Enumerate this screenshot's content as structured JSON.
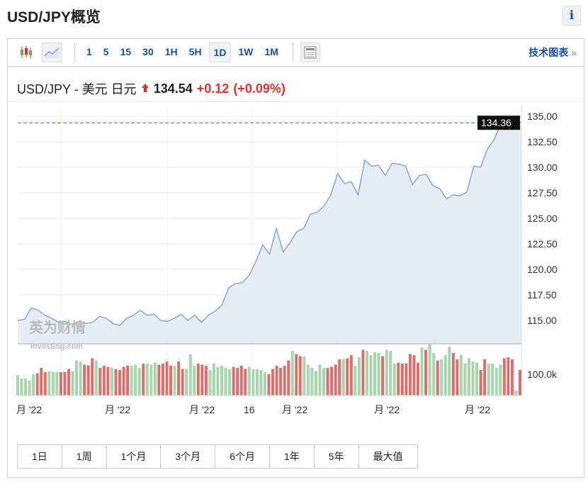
{
  "page": {
    "title": "USD/JPY概览",
    "info_label": "i"
  },
  "toolbar": {
    "intervals": [
      "1",
      "5",
      "15",
      "30",
      "1H",
      "5H",
      "1D",
      "1W",
      "1M"
    ],
    "selected_interval": "1D",
    "tech_label": "技术图表",
    "tech_arrow": "»",
    "icons": [
      "candlestick-icon",
      "area-chart-icon",
      "news-layout-icon"
    ]
  },
  "quote": {
    "name": "USD/JPY - 美元 日元",
    "price": "134.54",
    "change": "+0.12",
    "change_pct": "(+0.09%)",
    "direction": "up"
  },
  "colors": {
    "up": "#e0302b",
    "line": "#7ea3cc",
    "fill": "#e6ecf4",
    "vol_up": "#a8d5ad",
    "vol_down": "#d9706e",
    "link": "#1c4f9c"
  },
  "watermark": {
    "cn": "英为财情",
    "en": "Investing.com"
  },
  "chart_data": {
    "type": "area",
    "ylim": [
      112.5,
      135
    ],
    "y_ticks": [
      "115.00",
      "117.50",
      "120.00",
      "122.50",
      "125.00",
      "127.50",
      "130.00",
      "132.50",
      "135.00"
    ],
    "last_value_label": "134.36",
    "x_tick_labels": [
      "月 '22",
      "月 '22",
      "月 '22",
      "16",
      "月 '22",
      "月 '22",
      "月 '22"
    ],
    "values": [
      115.0,
      115.1,
      116.2,
      116.0,
      115.5,
      115.2,
      114.8,
      114.9,
      114.6,
      114.9,
      114.7,
      114.8,
      115.4,
      115.2,
      114.7,
      114.5,
      115.2,
      115.5,
      116.0,
      115.5,
      115.6,
      115.0,
      114.9,
      115.2,
      115.6,
      115.0,
      115.5,
      114.8,
      115.5,
      115.9,
      116.5,
      118.2,
      118.6,
      118.7,
      119.4,
      120.8,
      122.4,
      121.5,
      124.0,
      121.7,
      122.6,
      123.7,
      124.0,
      125.4,
      125.6,
      126.2,
      127.3,
      129.4,
      128.4,
      128.6,
      127.3,
      130.7,
      130.1,
      130.2,
      129.2,
      130.4,
      130.3,
      130.1,
      128.3,
      129.2,
      129.3,
      128.2,
      127.9,
      126.9,
      127.3,
      127.2,
      127.6,
      130.1,
      130.0,
      131.8,
      132.7,
      134.3,
      134.4,
      134.8,
      134.36
    ],
    "volume": {
      "tick_label": "100.0k",
      "ylim": [
        0,
        220
      ],
      "values": [
        95,
        80,
        80,
        70,
        100,
        105,
        130,
        110,
        115,
        112,
        110,
        110,
        110,
        125,
        115,
        165,
        160,
        145,
        142,
        175,
        165,
        130,
        140,
        135,
        130,
        125,
        120,
        135,
        140,
        140,
        145,
        130,
        150,
        150,
        145,
        155,
        145,
        150,
        160,
        140,
        140,
        160,
        125,
        125,
        195,
        140,
        150,
        145,
        140,
        120,
        150,
        135,
        140,
        130,
        125,
        135,
        130,
        140,
        125,
        135,
        125,
        125,
        120,
        110,
        100,
        125,
        140,
        130,
        140,
        165,
        210,
        195,
        185,
        185,
        145,
        130,
        115,
        145,
        130,
        130,
        135,
        145,
        170,
        170,
        175,
        190,
        140,
        180,
        215,
        210,
        190,
        205,
        200,
        185,
        215,
        210,
        150,
        155,
        150,
        150,
        195,
        190,
        155,
        225,
        215,
        240,
        200,
        165,
        170,
        190,
        230,
        200,
        170,
        190,
        150,
        175,
        160,
        155,
        120,
        170,
        150,
        150,
        130,
        145,
        175,
        180,
        170,
        25,
        120
      ],
      "directions": "uuuuuddduuuddduuudddudddudddduuuduuuddddudduuuddduuuuuudddduuuuuddddddudduuuuuuddddudduuduuuuduuudddddduduuduuudduuuuudduuuuddduduuuuuuud"
    }
  },
  "ranges": [
    "1日",
    "1周",
    "1个月",
    "3个月",
    "6个月",
    "1年",
    "5年",
    "最大值"
  ]
}
